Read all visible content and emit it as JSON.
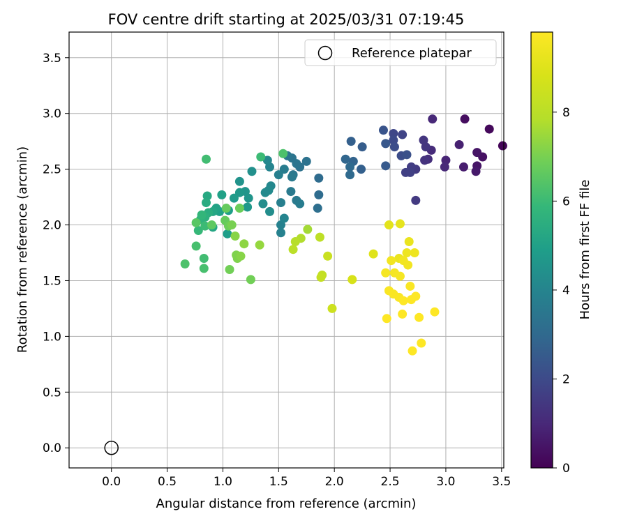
{
  "chart_data": {
    "type": "scatter",
    "title": "FOV centre drift starting at 2025/03/31 07:19:45",
    "xlabel": "Angular distance from reference (arcmin)",
    "ylabel": "Rotation from reference (arcmin)",
    "xlim": [
      -0.38,
      3.52
    ],
    "ylim": [
      -0.18,
      3.73
    ],
    "xticks": [
      "0.0",
      "0.5",
      "1.0",
      "1.5",
      "2.0",
      "2.5",
      "3.0",
      "3.5"
    ],
    "yticks": [
      "0.0",
      "0.5",
      "1.0",
      "1.5",
      "2.0",
      "2.5",
      "3.0",
      "3.5"
    ],
    "grid": true,
    "legend": {
      "position": "top-right",
      "entries": [
        "Reference platepar"
      ]
    },
    "reference_point": {
      "x": 0.0,
      "y": 0.0,
      "marker": "open-circle",
      "label": "Reference platepar"
    },
    "colorbar": {
      "label": "Hours from first FF file",
      "colormap": "viridis",
      "range": [
        0,
        9.8
      ],
      "ticks": [
        "0",
        "2",
        "4",
        "6",
        "8"
      ]
    },
    "points": [
      {
        "x": 3.51,
        "y": 2.71,
        "h": 0.1
      },
      {
        "x": 3.39,
        "y": 2.86,
        "h": 0.2
      },
      {
        "x": 3.17,
        "y": 2.95,
        "h": 0.3
      },
      {
        "x": 3.33,
        "y": 2.61,
        "h": 0.4
      },
      {
        "x": 3.28,
        "y": 2.65,
        "h": 0.5
      },
      {
        "x": 3.28,
        "y": 2.53,
        "h": 0.5
      },
      {
        "x": 3.27,
        "y": 2.48,
        "h": 0.6
      },
      {
        "x": 3.16,
        "y": 2.52,
        "h": 0.7
      },
      {
        "x": 3.12,
        "y": 2.72,
        "h": 0.8
      },
      {
        "x": 3.0,
        "y": 2.58,
        "h": 0.9
      },
      {
        "x": 2.99,
        "y": 2.52,
        "h": 1.0
      },
      {
        "x": 2.88,
        "y": 2.95,
        "h": 1.0
      },
      {
        "x": 2.87,
        "y": 2.67,
        "h": 1.1
      },
      {
        "x": 2.84,
        "y": 2.59,
        "h": 1.2
      },
      {
        "x": 2.81,
        "y": 2.58,
        "h": 1.3
      },
      {
        "x": 2.8,
        "y": 2.76,
        "h": 1.4
      },
      {
        "x": 2.82,
        "y": 2.7,
        "h": 1.4
      },
      {
        "x": 2.73,
        "y": 2.5,
        "h": 1.5
      },
      {
        "x": 2.69,
        "y": 2.52,
        "h": 1.6
      },
      {
        "x": 2.64,
        "y": 2.47,
        "h": 1.7
      },
      {
        "x": 2.68,
        "y": 2.47,
        "h": 1.7
      },
      {
        "x": 2.61,
        "y": 2.81,
        "h": 1.8
      },
      {
        "x": 2.53,
        "y": 2.82,
        "h": 1.9
      },
      {
        "x": 2.53,
        "y": 2.76,
        "h": 2.0
      },
      {
        "x": 2.54,
        "y": 2.7,
        "h": 2.1
      },
      {
        "x": 2.6,
        "y": 2.62,
        "h": 2.1
      },
      {
        "x": 2.65,
        "y": 2.63,
        "h": 2.2
      },
      {
        "x": 2.73,
        "y": 2.22,
        "h": 1.5
      },
      {
        "x": 2.44,
        "y": 2.85,
        "h": 2.3
      },
      {
        "x": 2.46,
        "y": 2.73,
        "h": 2.4
      },
      {
        "x": 2.46,
        "y": 2.53,
        "h": 2.5
      },
      {
        "x": 2.25,
        "y": 2.7,
        "h": 2.6
      },
      {
        "x": 2.24,
        "y": 2.5,
        "h": 2.7
      },
      {
        "x": 2.15,
        "y": 2.75,
        "h": 2.7
      },
      {
        "x": 2.17,
        "y": 2.57,
        "h": 2.8
      },
      {
        "x": 2.1,
        "y": 2.59,
        "h": 2.9
      },
      {
        "x": 2.14,
        "y": 2.52,
        "h": 3.0
      },
      {
        "x": 2.14,
        "y": 2.45,
        "h": 3.0
      },
      {
        "x": 1.86,
        "y": 2.42,
        "h": 3.1
      },
      {
        "x": 1.86,
        "y": 2.27,
        "h": 3.1
      },
      {
        "x": 1.85,
        "y": 2.15,
        "h": 3.2
      },
      {
        "x": 1.75,
        "y": 2.57,
        "h": 3.3
      },
      {
        "x": 1.69,
        "y": 2.52,
        "h": 3.3
      },
      {
        "x": 1.66,
        "y": 2.55,
        "h": 3.4
      },
      {
        "x": 1.62,
        "y": 2.6,
        "h": 3.4
      },
      {
        "x": 1.58,
        "y": 2.62,
        "h": 3.5
      },
      {
        "x": 1.63,
        "y": 2.45,
        "h": 3.5
      },
      {
        "x": 1.62,
        "y": 2.43,
        "h": 3.6
      },
      {
        "x": 1.61,
        "y": 2.3,
        "h": 3.6
      },
      {
        "x": 1.66,
        "y": 2.22,
        "h": 3.6
      },
      {
        "x": 1.69,
        "y": 2.19,
        "h": 3.7
      },
      {
        "x": 1.55,
        "y": 2.5,
        "h": 3.7
      },
      {
        "x": 1.5,
        "y": 2.45,
        "h": 3.8
      },
      {
        "x": 1.52,
        "y": 2.2,
        "h": 3.8
      },
      {
        "x": 1.52,
        "y": 2.0,
        "h": 3.9
      },
      {
        "x": 1.52,
        "y": 1.93,
        "h": 3.9
      },
      {
        "x": 1.55,
        "y": 2.06,
        "h": 4.0
      },
      {
        "x": 1.42,
        "y": 2.52,
        "h": 4.0
      },
      {
        "x": 1.4,
        "y": 2.58,
        "h": 4.1
      },
      {
        "x": 1.43,
        "y": 2.35,
        "h": 4.1
      },
      {
        "x": 1.41,
        "y": 2.31,
        "h": 4.2
      },
      {
        "x": 1.38,
        "y": 2.29,
        "h": 4.2
      },
      {
        "x": 1.36,
        "y": 2.19,
        "h": 4.3
      },
      {
        "x": 1.42,
        "y": 2.12,
        "h": 4.3
      },
      {
        "x": 1.26,
        "y": 2.48,
        "h": 4.4
      },
      {
        "x": 1.15,
        "y": 2.39,
        "h": 4.5
      },
      {
        "x": 1.2,
        "y": 2.3,
        "h": 4.6
      },
      {
        "x": 1.23,
        "y": 2.24,
        "h": 4.6
      },
      {
        "x": 1.15,
        "y": 2.29,
        "h": 4.7
      },
      {
        "x": 1.22,
        "y": 2.16,
        "h": 4.7
      },
      {
        "x": 1.1,
        "y": 2.24,
        "h": 4.8
      },
      {
        "x": 1.05,
        "y": 2.13,
        "h": 4.9
      },
      {
        "x": 1.04,
        "y": 1.92,
        "h": 4.9
      },
      {
        "x": 0.99,
        "y": 2.27,
        "h": 5.0
      },
      {
        "x": 0.97,
        "y": 2.12,
        "h": 5.0
      },
      {
        "x": 0.94,
        "y": 2.15,
        "h": 5.1
      },
      {
        "x": 0.91,
        "y": 2.12,
        "h": 5.2
      },
      {
        "x": 0.91,
        "y": 1.98,
        "h": 5.2
      },
      {
        "x": 0.86,
        "y": 2.26,
        "h": 5.3
      },
      {
        "x": 0.85,
        "y": 2.2,
        "h": 5.4
      },
      {
        "x": 0.87,
        "y": 2.11,
        "h": 5.5
      },
      {
        "x": 0.84,
        "y": 2.07,
        "h": 5.6
      },
      {
        "x": 0.8,
        "y": 2.05,
        "h": 5.7
      },
      {
        "x": 0.81,
        "y": 2.09,
        "h": 5.8
      },
      {
        "x": 0.78,
        "y": 1.95,
        "h": 5.9
      },
      {
        "x": 0.84,
        "y": 1.99,
        "h": 6.0
      },
      {
        "x": 0.83,
        "y": 1.7,
        "h": 6.1
      },
      {
        "x": 0.83,
        "y": 1.61,
        "h": 6.2
      },
      {
        "x": 0.76,
        "y": 1.81,
        "h": 6.2
      },
      {
        "x": 0.66,
        "y": 1.65,
        "h": 6.3
      },
      {
        "x": 0.85,
        "y": 2.59,
        "h": 6.1
      },
      {
        "x": 1.34,
        "y": 2.61,
        "h": 6.0
      },
      {
        "x": 1.54,
        "y": 2.64,
        "h": 6.3
      },
      {
        "x": 0.76,
        "y": 2.02,
        "h": 6.5
      },
      {
        "x": 0.9,
        "y": 2.0,
        "h": 6.6
      },
      {
        "x": 1.02,
        "y": 2.04,
        "h": 6.7
      },
      {
        "x": 1.03,
        "y": 2.15,
        "h": 6.7
      },
      {
        "x": 1.15,
        "y": 2.15,
        "h": 6.8
      },
      {
        "x": 1.05,
        "y": 1.99,
        "h": 6.8
      },
      {
        "x": 1.08,
        "y": 2.0,
        "h": 7.0
      },
      {
        "x": 1.06,
        "y": 1.6,
        "h": 6.9
      },
      {
        "x": 1.25,
        "y": 1.51,
        "h": 6.9
      },
      {
        "x": 1.12,
        "y": 1.73,
        "h": 7.1
      },
      {
        "x": 1.13,
        "y": 1.7,
        "h": 7.1
      },
      {
        "x": 1.16,
        "y": 1.72,
        "h": 7.2
      },
      {
        "x": 1.11,
        "y": 1.9,
        "h": 7.2
      },
      {
        "x": 1.19,
        "y": 1.83,
        "h": 7.3
      },
      {
        "x": 1.33,
        "y": 1.82,
        "h": 7.4
      },
      {
        "x": 1.76,
        "y": 1.96,
        "h": 7.6
      },
      {
        "x": 1.7,
        "y": 1.88,
        "h": 7.8
      },
      {
        "x": 1.65,
        "y": 1.85,
        "h": 7.9
      },
      {
        "x": 1.63,
        "y": 1.78,
        "h": 8.0
      },
      {
        "x": 1.87,
        "y": 1.89,
        "h": 8.1
      },
      {
        "x": 1.89,
        "y": 1.55,
        "h": 8.2
      },
      {
        "x": 1.88,
        "y": 1.53,
        "h": 8.3
      },
      {
        "x": 1.94,
        "y": 1.72,
        "h": 8.4
      },
      {
        "x": 1.98,
        "y": 1.25,
        "h": 8.5
      },
      {
        "x": 2.16,
        "y": 1.51,
        "h": 8.8
      },
      {
        "x": 2.35,
        "y": 1.74,
        "h": 9.0
      },
      {
        "x": 2.49,
        "y": 2.0,
        "h": 9.1
      },
      {
        "x": 2.59,
        "y": 2.01,
        "h": 9.2
      },
      {
        "x": 2.67,
        "y": 1.85,
        "h": 9.3
      },
      {
        "x": 2.58,
        "y": 1.7,
        "h": 9.3
      },
      {
        "x": 2.65,
        "y": 1.75,
        "h": 9.4
      },
      {
        "x": 2.72,
        "y": 1.75,
        "h": 9.4
      },
      {
        "x": 2.51,
        "y": 1.68,
        "h": 9.5
      },
      {
        "x": 2.62,
        "y": 1.68,
        "h": 9.5
      },
      {
        "x": 2.66,
        "y": 1.64,
        "h": 9.5
      },
      {
        "x": 2.46,
        "y": 1.57,
        "h": 9.6
      },
      {
        "x": 2.54,
        "y": 1.57,
        "h": 9.6
      },
      {
        "x": 2.59,
        "y": 1.54,
        "h": 9.6
      },
      {
        "x": 2.68,
        "y": 1.45,
        "h": 9.7
      },
      {
        "x": 2.49,
        "y": 1.41,
        "h": 9.7
      },
      {
        "x": 2.53,
        "y": 1.38,
        "h": 9.7
      },
      {
        "x": 2.58,
        "y": 1.35,
        "h": 9.7
      },
      {
        "x": 2.62,
        "y": 1.32,
        "h": 9.8
      },
      {
        "x": 2.69,
        "y": 1.33,
        "h": 9.8
      },
      {
        "x": 2.73,
        "y": 1.36,
        "h": 9.8
      },
      {
        "x": 2.47,
        "y": 1.16,
        "h": 9.8
      },
      {
        "x": 2.61,
        "y": 1.2,
        "h": 9.8
      },
      {
        "x": 2.76,
        "y": 1.17,
        "h": 9.8
      },
      {
        "x": 2.9,
        "y": 1.22,
        "h": 9.8
      },
      {
        "x": 2.78,
        "y": 0.94,
        "h": 9.8
      },
      {
        "x": 2.7,
        "y": 0.87,
        "h": 9.8
      }
    ]
  }
}
